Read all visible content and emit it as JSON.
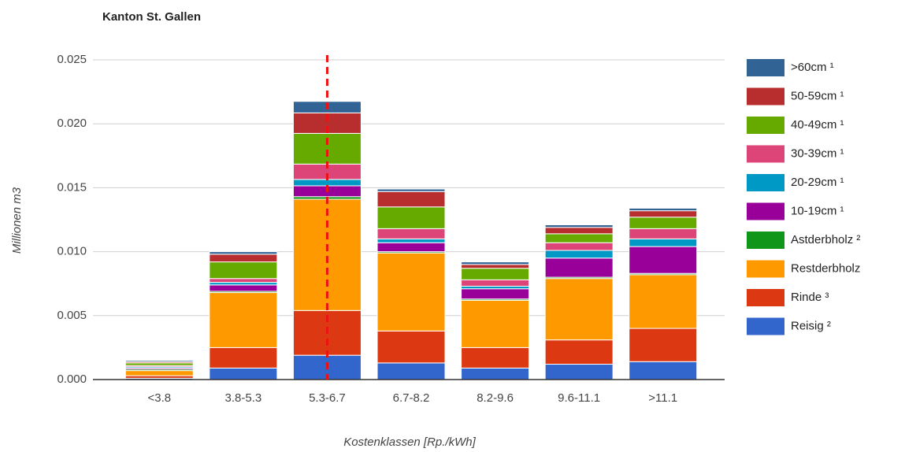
{
  "chart_data": {
    "type": "stacked_bar",
    "title": "Kanton St. Gallen",
    "x_label": "Kostenklassen [Rp./kWh]",
    "y_label": "Millionen m3",
    "categories": [
      "<3.8",
      "3.8-5.3",
      "5.3-6.7",
      "6.7-8.2",
      "8.2-9.6",
      "9.6-11.1",
      ">11.1"
    ],
    "series": [
      {
        "name": "Reisig ²",
        "color": "#3366cc",
        "values": [
          0.0001,
          0.0009,
          0.0019,
          0.0013,
          0.0009,
          0.0012,
          0.0014
        ]
      },
      {
        "name": "Rinde ³",
        "color": "#dc3912",
        "values": [
          0.0002,
          0.0016,
          0.0035,
          0.0025,
          0.0016,
          0.0019,
          0.0026
        ]
      },
      {
        "name": "Restderbholz",
        "color": "#ff9900",
        "values": [
          0.0004,
          0.0043,
          0.0087,
          0.0061,
          0.0037,
          0.0048,
          0.0042
        ]
      },
      {
        "name": "Astderbholz ²",
        "color": "#109618",
        "values": [
          0.0001,
          0.0001,
          0.0002,
          0.0001,
          0.0001,
          0.0001,
          0.0001
        ]
      },
      {
        "name": "10-19cm ¹",
        "color": "#990099",
        "values": [
          0.0001,
          0.0005,
          0.00085,
          0.0007,
          0.0008,
          0.0015,
          0.0021
        ]
      },
      {
        "name": "20-29cm ¹",
        "color": "#0099c6",
        "values": [
          0.0001,
          0.0002,
          0.0005,
          0.0003,
          0.0002,
          0.0006,
          0.0006
        ]
      },
      {
        "name": "30-39cm ¹",
        "color": "#dd4477",
        "values": [
          0.0001,
          0.0003,
          0.0012,
          0.0008,
          0.0005,
          0.0006,
          0.0008
        ]
      },
      {
        "name": "40-49cm ¹",
        "color": "#66aa00",
        "values": [
          0.0002,
          0.0013,
          0.0024,
          0.0017,
          0.0009,
          0.0007,
          0.0009
        ]
      },
      {
        "name": "50-59cm ¹",
        "color": "#b82e2e",
        "values": [
          0.0001,
          0.0006,
          0.0016,
          0.0012,
          0.0003,
          0.0005,
          0.0005
        ]
      },
      {
        "name": ">60cm ¹",
        "color": "#316395",
        "values": [
          0.0001,
          0.0002,
          0.0009,
          0.0002,
          0.0002,
          0.0002,
          0.0002
        ]
      }
    ],
    "ylim": [
      0,
      0.025
    ],
    "yticks": [
      {
        "value": 0,
        "label": "0.000"
      },
      0.005,
      {
        "value": 0.01,
        "label": "0.010"
      },
      0.015,
      {
        "value": 0.02,
        "label": "0.020"
      },
      0.025
    ],
    "grid": true,
    "legend": "right",
    "reference_line": {
      "category_index": 2,
      "color": "#ee1111"
    }
  }
}
